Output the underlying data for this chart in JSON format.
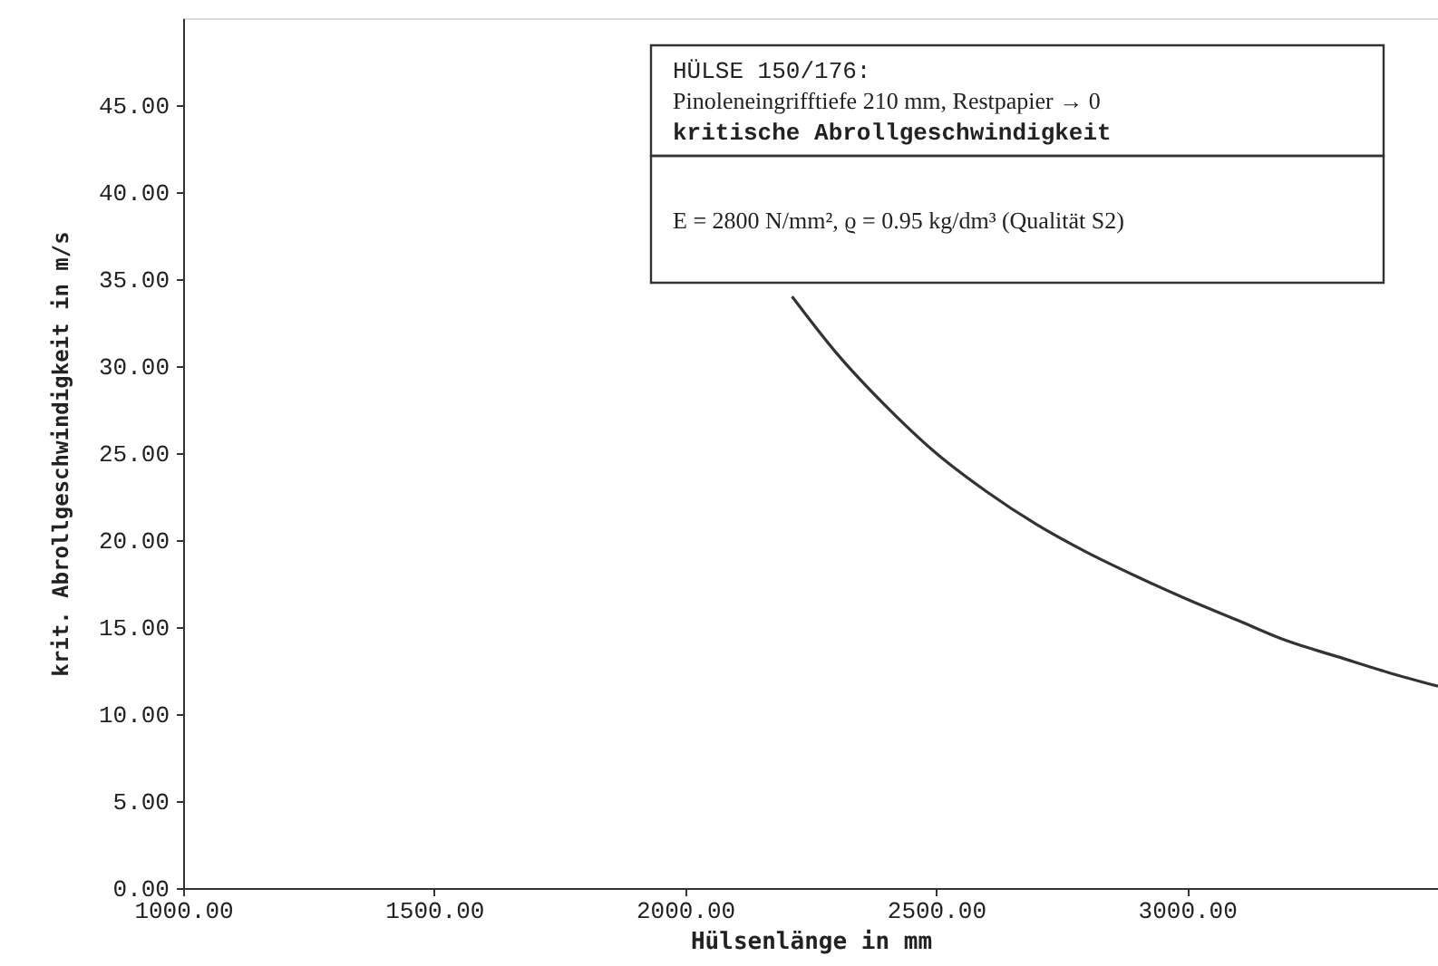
{
  "chart_data": {
    "type": "line",
    "xlabel": "Hülsenlänge in mm",
    "ylabel": "krit. Abrollgeschwindigkeit in m/s",
    "annotations": [
      "HÜLSE 150/176:",
      "Pinoleneingrifftiefe 210 mm, Restpapier → 0",
      "kritische   Abrollgeschwindigkeit",
      "E = 2800 N/mm², ϱ = 0.95 kg/dm³ (Qualität S2)"
    ],
    "x": [
      2213,
      2300,
      2400,
      2500,
      2600,
      2700,
      2800,
      2900,
      3000,
      3100,
      3200,
      3300,
      3400,
      3500
    ],
    "series": [
      {
        "color": "#333333",
        "values": [
          34.0,
          30.8,
          27.7,
          25.0,
          22.8,
          20.9,
          19.3,
          17.9,
          16.6,
          15.4,
          14.2,
          13.3,
          12.4,
          11.6
        ]
      }
    ],
    "xlim": [
      1000,
      3500
    ],
    "ylim": [
      0,
      50
    ],
    "xticks": [
      {
        "value": 1000,
        "label": "1000.00"
      },
      {
        "value": 1500,
        "label": "1500.00"
      },
      {
        "value": 2000,
        "label": "2000.00"
      },
      {
        "value": 2500,
        "label": "2500.00"
      },
      {
        "value": 3000,
        "label": "3000.00"
      }
    ],
    "yticks": [
      {
        "value": 0,
        "label": "0.00"
      },
      {
        "value": 5,
        "label": "5.00"
      },
      {
        "value": 10,
        "label": "10.00"
      },
      {
        "value": 15,
        "label": "15.00"
      },
      {
        "value": 20,
        "label": "20.00"
      },
      {
        "value": 25,
        "label": "25.00"
      },
      {
        "value": 30,
        "label": "30.00"
      },
      {
        "value": 35,
        "label": "35.00"
      },
      {
        "value": 40,
        "label": "40.00"
      },
      {
        "value": 45,
        "label": "45.00"
      }
    ],
    "marker": "none",
    "line_style": "solid"
  }
}
